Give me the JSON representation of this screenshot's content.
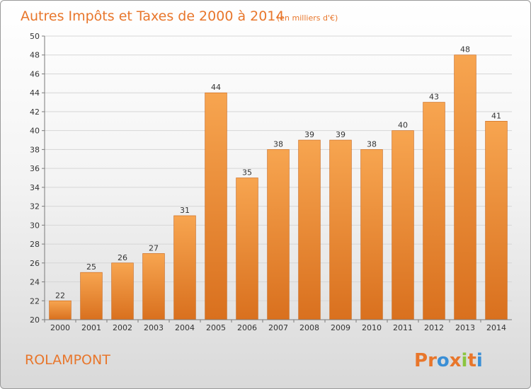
{
  "chart_data": {
    "type": "bar",
    "title": "Autres Impôts et Taxes de 2000 à 2014",
    "subtitle": "(en milliers d'€)",
    "categories": [
      "2000",
      "2001",
      "2002",
      "2003",
      "2004",
      "2005",
      "2006",
      "2007",
      "2008",
      "2009",
      "2010",
      "2011",
      "2012",
      "2013",
      "2014"
    ],
    "values": [
      22,
      25,
      26,
      27,
      31,
      44,
      35,
      38,
      39,
      39,
      38,
      40,
      43,
      48,
      41
    ],
    "ylim": [
      20,
      50
    ],
    "yticks": [
      20,
      22,
      24,
      26,
      28,
      30,
      32,
      34,
      36,
      38,
      40,
      42,
      44,
      46,
      48,
      50
    ],
    "xlabel": "",
    "ylabel": "",
    "bar_color_top": "#f7a550",
    "bar_color_bottom": "#d9701e",
    "grid": "horizontal"
  },
  "footer": {
    "commune": "ROLAMPONT",
    "logo_text": "Proxiti",
    "logo_colors": [
      "#e8762b",
      "#e8762b",
      "#3a8fd6",
      "#e8762b",
      "#8bc53f",
      "#e8762b",
      "#3a8fd6"
    ]
  }
}
